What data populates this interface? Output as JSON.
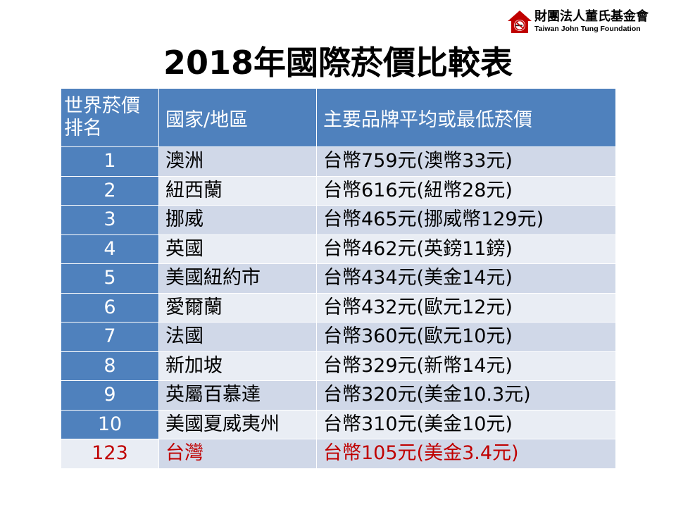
{
  "logo": {
    "name_cn": "財團法人董氏基金會",
    "name_en": "Taiwan John Tung Foundation",
    "brand_color": "#c00000",
    "icon": "house-no-smoking-icon"
  },
  "title": "2018年國際菸價比較表",
  "table": {
    "headers": {
      "rank": "世界菸價排名",
      "country": "國家/地區",
      "price": "主要品牌平均或最低菸價"
    },
    "rows": [
      {
        "rank": "1",
        "country": "澳洲",
        "price": "台幣759元(澳幣33元)"
      },
      {
        "rank": "2",
        "country": "紐西蘭",
        "price": "台幣616元(紐幣28元)"
      },
      {
        "rank": "3",
        "country": "挪威",
        "price": "台幣465元(挪威幣129元)"
      },
      {
        "rank": "4",
        "country": "英國",
        "price": "台幣462元(英鎊11鎊)"
      },
      {
        "rank": "5",
        "country": "美國紐約市",
        "price": "台幣434元(美金14元)"
      },
      {
        "rank": "6",
        "country": "愛爾蘭",
        "price": "台幣432元(歐元12元)"
      },
      {
        "rank": "7",
        "country": "法國",
        "price": "台幣360元(歐元10元)"
      },
      {
        "rank": "8",
        "country": "新加坡",
        "price": "台幣329元(新幣14元)"
      },
      {
        "rank": "9",
        "country": "英屬百慕達",
        "price": "台幣320元(美金10.3元)"
      },
      {
        "rank": "10",
        "country": "美國夏威夷州",
        "price": "台幣310元(美金10元)"
      },
      {
        "rank": "123",
        "country": "台灣",
        "price": "台幣105元(美金3.4元)"
      }
    ],
    "colors": {
      "header_bg": "#4f81bd",
      "row_band_dark": "#d0d8e8",
      "row_band_light": "#e9edf4",
      "highlight_text": "#c00000"
    }
  }
}
